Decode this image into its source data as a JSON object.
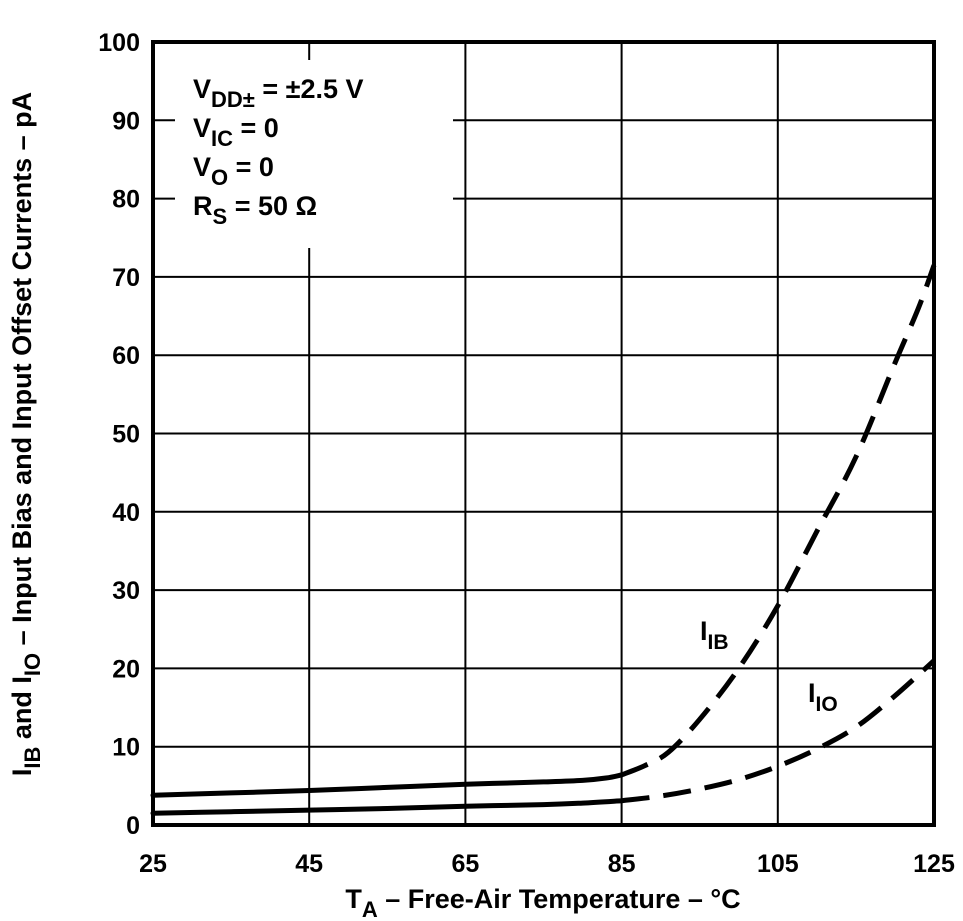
{
  "chart_data": {
    "type": "line",
    "title": "",
    "xlabel": "TA – Free-Air Temperature – °C",
    "xlabel_parts": {
      "main": "T",
      "sub": "A",
      "rest": " – Free-Air Temperature – °C"
    },
    "ylabel": "IIB and IIO – Input Bias and Input Offset Currents – pA",
    "ylabel_parts": {
      "i1": "I",
      "s1": "IB",
      "mid": " and I",
      "s2": "IO",
      "rest": " – Input Bias and Input Offset Currents – pA"
    },
    "xlim": [
      25,
      125
    ],
    "ylim": [
      0,
      100
    ],
    "x_ticks": [
      25,
      45,
      65,
      85,
      105,
      125
    ],
    "y_ticks": [
      0,
      10,
      20,
      30,
      40,
      50,
      60,
      70,
      80,
      90,
      100
    ],
    "grid": true,
    "conditions": [
      {
        "main": "V",
        "sub": "DD±",
        "rest": " = ±2.5 V"
      },
      {
        "main": "V",
        "sub": "IC",
        "rest": " = 0"
      },
      {
        "main": "V",
        "sub": "O",
        "rest": " = 0"
      },
      {
        "main": "R",
        "sub": "S",
        "rest": " = 50 Ω"
      }
    ],
    "series": [
      {
        "name": "IIB",
        "label_main": "I",
        "label_sub": "IB",
        "solid_until_x": 85,
        "x": [
          25,
          35,
          45,
          55,
          65,
          75,
          80,
          83,
          85,
          88,
          91,
          95,
          100,
          105,
          110,
          115,
          120,
          123,
          125
        ],
        "values": [
          3.8,
          4.1,
          4.4,
          4.8,
          5.2,
          5.5,
          5.7,
          6.0,
          6.4,
          7.6,
          9.3,
          13.5,
          20.0,
          28.0,
          37.5,
          47.0,
          59.0,
          66.0,
          71.5
        ]
      },
      {
        "name": "IIO",
        "label_main": "I",
        "label_sub": "IO",
        "solid_until_x": 85,
        "x": [
          25,
          35,
          45,
          55,
          65,
          75,
          80,
          85,
          90,
          95,
          100,
          105,
          110,
          115,
          120,
          125
        ],
        "values": [
          1.5,
          1.7,
          1.9,
          2.1,
          2.4,
          2.6,
          2.8,
          3.1,
          3.7,
          4.6,
          5.8,
          7.5,
          9.7,
          12.5,
          16.5,
          21.0
        ]
      }
    ]
  }
}
